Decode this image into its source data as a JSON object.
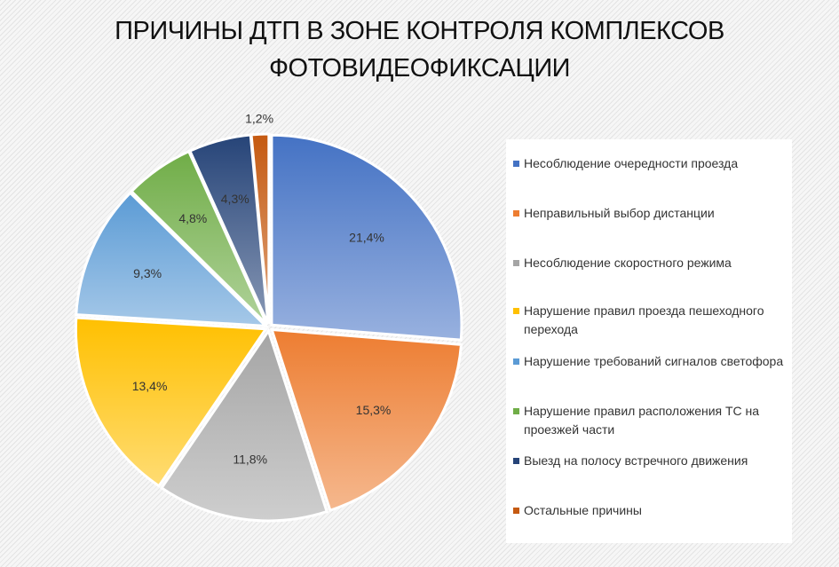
{
  "title_lines": [
    "ПРИЧИНЫ ДТП В ЗОНЕ КОНТРОЛЯ КОМПЛЕКСОВ",
    "ФОТОВИДЕОФИКСАЦИИ"
  ],
  "chart_data": {
    "type": "pie",
    "title": "ПРИЧИНЫ ДТП В ЗОНЕ КОНТРОЛЯ КОМПЛЕКСОВ ФОТОВИДЕОФИКСАЦИИ",
    "legend_position": "right",
    "slices": [
      {
        "label": "Несоблюдение очередности проезда",
        "value": 21.4,
        "display": "21,4%",
        "color": "#4472c4"
      },
      {
        "label": "Неправильный выбор дистанции",
        "value": 15.3,
        "display": "15,3%",
        "color": "#ed7d31"
      },
      {
        "label": "Несоблюдение скоростного режима",
        "value": 11.8,
        "display": "11,8%",
        "color": "#a5a5a5"
      },
      {
        "label": "Нарушение правил проезда пешеходного перехода",
        "value": 13.4,
        "display": "13,4%",
        "color": "#ffc000"
      },
      {
        "label": "Нарушение требований сигналов светофора",
        "value": 9.3,
        "display": "9,3%",
        "color": "#5b9bd5"
      },
      {
        "label": "Нарушение правил расположения ТС на проезжей части",
        "value": 4.8,
        "display": "4,8%",
        "color": "#70ad47"
      },
      {
        "label": "Выезд на полосу встречного движения",
        "value": 4.3,
        "display": "4,3%",
        "color": "#264478"
      },
      {
        "label": "Остальные причины",
        "value": 1.2,
        "display": "1,2%",
        "color": "#c55a11"
      }
    ]
  }
}
